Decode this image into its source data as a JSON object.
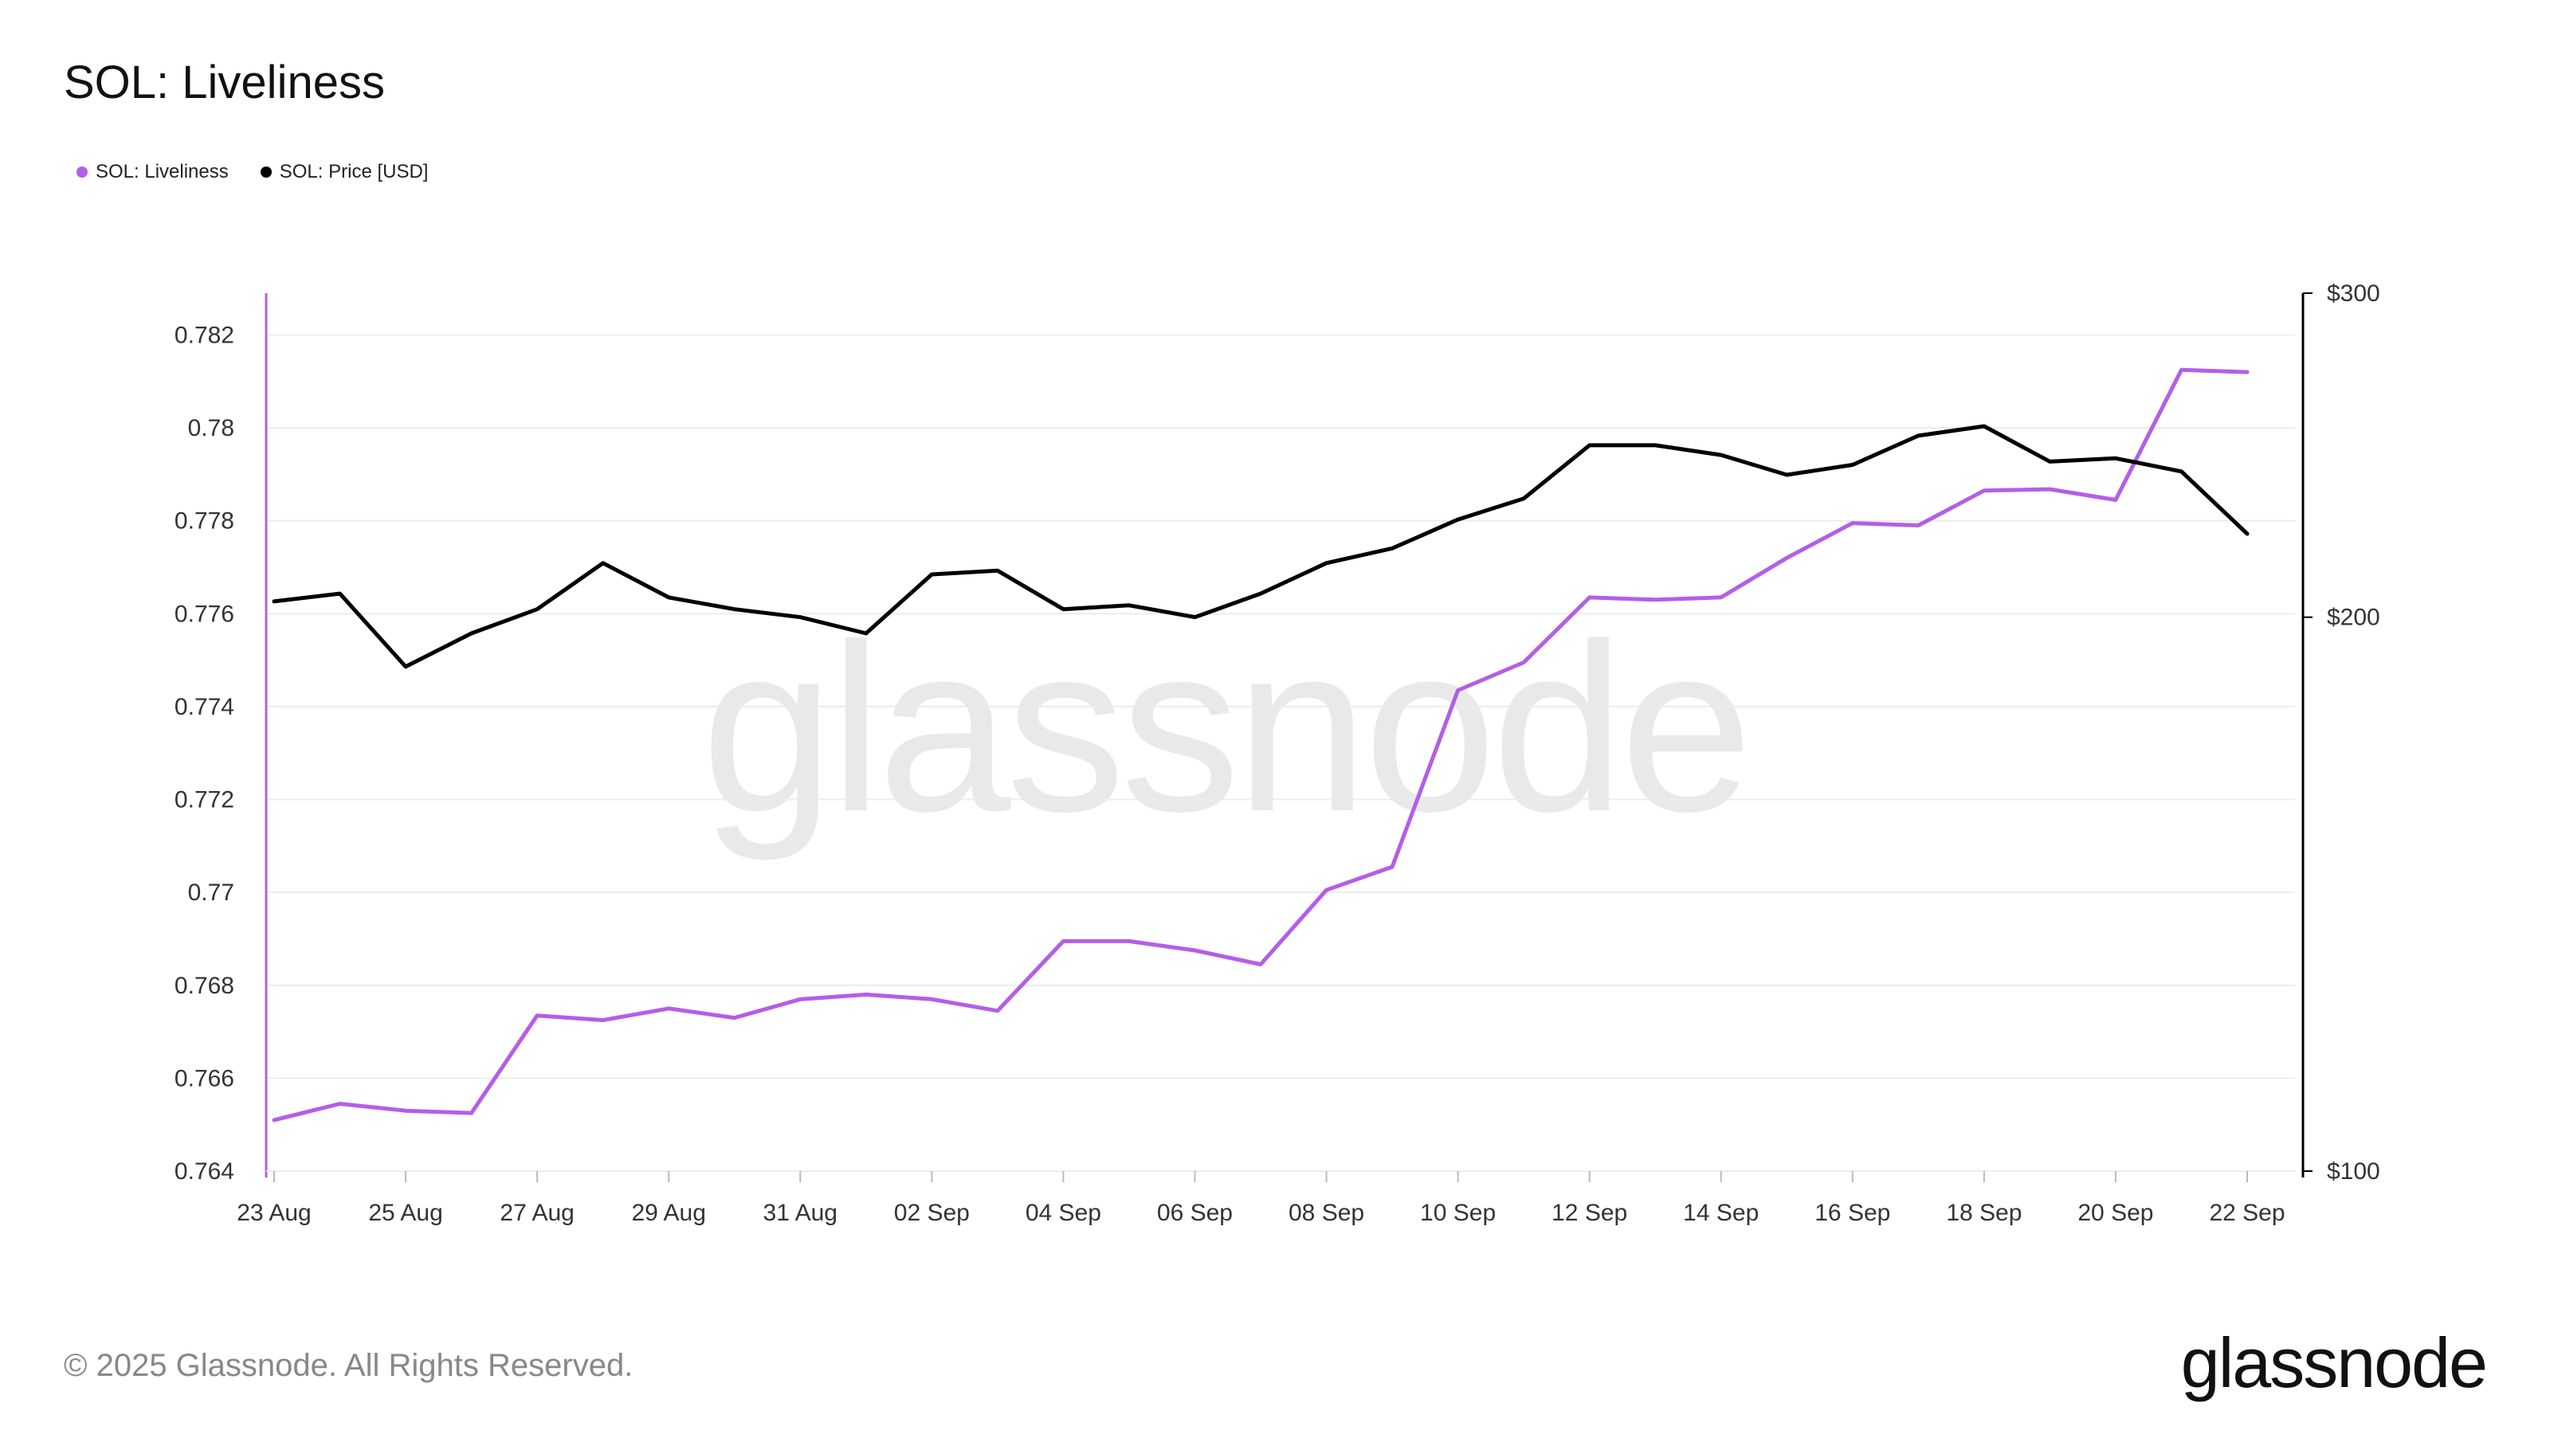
{
  "title": "SOL: Liveliness",
  "legend": [
    {
      "label": "SOL: Liveliness",
      "color": "#b45ee8"
    },
    {
      "label": "SOL: Price [USD]",
      "color": "#000000"
    }
  ],
  "watermark": "glassnode",
  "footer": "© 2025 Glassnode. All Rights Reserved.",
  "brand": "glassnode",
  "chart_data": {
    "type": "line",
    "x": [
      "23 Aug",
      "24 Aug",
      "25 Aug",
      "26 Aug",
      "27 Aug",
      "28 Aug",
      "29 Aug",
      "30 Aug",
      "31 Aug",
      "01 Sep",
      "02 Sep",
      "03 Sep",
      "04 Sep",
      "05 Sep",
      "06 Sep",
      "07 Sep",
      "08 Sep",
      "09 Sep",
      "10 Sep",
      "11 Sep",
      "12 Sep",
      "13 Sep",
      "14 Sep",
      "15 Sep",
      "16 Sep",
      "17 Sep",
      "18 Sep",
      "19 Sep",
      "20 Sep",
      "21 Sep",
      "22 Sep"
    ],
    "x_ticks": [
      "23 Aug",
      "25 Aug",
      "27 Aug",
      "29 Aug",
      "31 Aug",
      "02 Sep",
      "04 Sep",
      "06 Sep",
      "08 Sep",
      "10 Sep",
      "12 Sep",
      "14 Sep",
      "16 Sep",
      "18 Sep",
      "20 Sep",
      "22 Sep"
    ],
    "left_axis": {
      "ylim": [
        0.764,
        0.7829
      ],
      "ticks": [
        0.764,
        0.766,
        0.768,
        0.77,
        0.772,
        0.774,
        0.776,
        0.778,
        0.78,
        0.782
      ],
      "tick_labels": [
        "0.764",
        "0.766",
        "0.768",
        "0.77",
        "0.772",
        "0.774",
        "0.776",
        "0.778",
        "0.78",
        "0.782"
      ],
      "color": "#b45ee8"
    },
    "right_axis": {
      "scale": "log",
      "ylim": [
        100,
        300
      ],
      "ticks": [
        100,
        200,
        300
      ],
      "tick_labels": [
        "$100",
        "$200",
        "$300"
      ],
      "color": "#000000"
    },
    "series": [
      {
        "name": "SOL: Liveliness",
        "axis": "left",
        "color": "#b45ee8",
        "values": [
          0.7651,
          0.76545,
          0.7653,
          0.76525,
          0.76735,
          0.76725,
          0.7675,
          0.7673,
          0.7677,
          0.7678,
          0.7677,
          0.76745,
          0.76895,
          0.76895,
          0.76875,
          0.76845,
          0.77005,
          0.77055,
          0.77435,
          0.77495,
          0.77635,
          0.7763,
          0.77635,
          0.7772,
          0.77795,
          0.7779,
          0.77865,
          0.77868,
          0.77845,
          0.78125,
          0.7812
        ]
      },
      {
        "name": "SOL: Price [USD]",
        "axis": "right",
        "color": "#000000",
        "values": [
          204,
          206,
          188,
          196,
          202,
          214,
          205,
          202,
          200,
          196,
          211,
          212,
          202,
          203,
          200,
          206,
          214,
          218,
          226,
          232,
          248,
          248,
          245,
          239,
          242,
          251,
          254,
          243,
          244,
          240,
          222
        ]
      }
    ],
    "grid": true
  }
}
